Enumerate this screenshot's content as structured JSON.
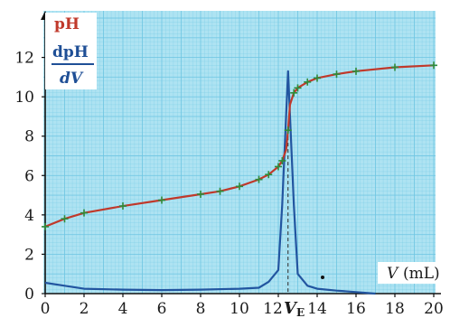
{
  "chart_data": {
    "type": "line",
    "title": "",
    "xlabel_symbol": "V",
    "xlabel_unit": "(mL)",
    "ylabel_ph": "pH",
    "ylabel_deriv_num": "dpH",
    "ylabel_deriv_den": "dV",
    "equivalence_label": "V",
    "equivalence_sub": "E",
    "equivalence_x": 12.5,
    "xlim": [
      0,
      20
    ],
    "ylim": [
      0,
      14
    ],
    "x_ticks": [
      0,
      2,
      4,
      6,
      8,
      10,
      12,
      14,
      16,
      18,
      20
    ],
    "y_ticks": [
      0,
      2,
      4,
      6,
      8,
      10,
      12
    ],
    "grid": true,
    "colors": {
      "ph": "#c0392b",
      "deriv": "#2255a0",
      "markers": "#2e8b3a",
      "background": "#aee3f2",
      "grid": "#6fc6e3"
    },
    "series": [
      {
        "name": "pH",
        "x": [
          0,
          1,
          2,
          4,
          6,
          8,
          9,
          10,
          11,
          11.5,
          12,
          12.2,
          12.4,
          12.5,
          12.6,
          12.8,
          13,
          13.5,
          14,
          15,
          16,
          18,
          20
        ],
        "y": [
          3.4,
          3.8,
          4.1,
          4.45,
          4.75,
          5.05,
          5.2,
          5.45,
          5.8,
          6.05,
          6.45,
          6.75,
          7.3,
          8.3,
          9.6,
          10.2,
          10.45,
          10.75,
          10.95,
          11.15,
          11.3,
          11.5,
          11.6
        ]
      },
      {
        "name": "dpH/dV",
        "x": [
          0,
          1,
          2,
          4,
          6,
          8,
          10,
          11,
          11.5,
          12,
          12.2,
          12.5,
          12.8,
          13,
          13.5,
          14,
          15,
          16,
          17
        ],
        "y": [
          0.55,
          0.4,
          0.25,
          0.2,
          0.18,
          0.2,
          0.25,
          0.3,
          0.6,
          1.2,
          4.5,
          11.3,
          4.5,
          1.0,
          0.4,
          0.25,
          0.15,
          0.08,
          0
        ]
      }
    ],
    "markers": {
      "x": [
        0,
        1,
        2,
        4,
        6,
        8,
        9,
        10,
        11,
        11.5,
        12,
        12.2,
        12.5,
        12.8,
        13,
        13.5,
        14,
        15,
        16,
        18,
        20
      ],
      "y": [
        3.4,
        3.8,
        4.1,
        4.45,
        4.75,
        5.05,
        5.2,
        5.45,
        5.8,
        6.05,
        6.45,
        6.75,
        8.3,
        10.2,
        10.45,
        10.75,
        10.95,
        11.15,
        11.3,
        11.5,
        11.6
      ]
    }
  }
}
